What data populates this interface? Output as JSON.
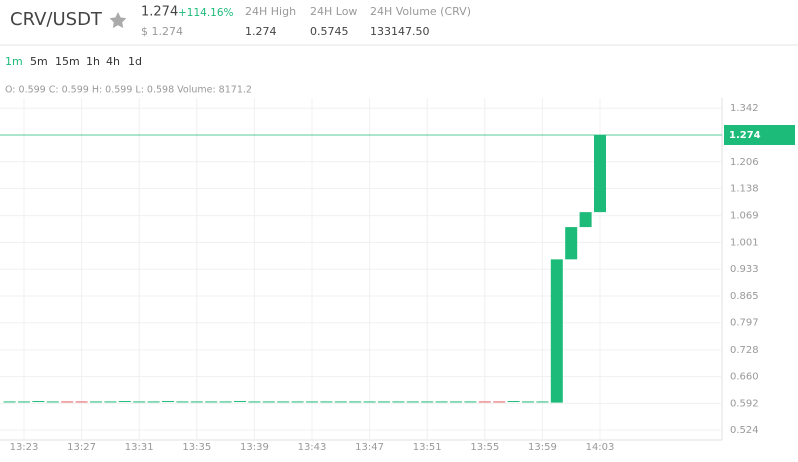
{
  "header": {
    "pair": "CRV/USDT",
    "price": "1.274",
    "change": "+114.16%",
    "price_usd": "$ 1.274",
    "stats": [
      {
        "label": "24H High",
        "value": "1.274"
      },
      {
        "label": "24H Low",
        "value": "0.5745"
      },
      {
        "label": "24H Volume (CRV)",
        "value": "133147.50"
      }
    ]
  },
  "intervals": [
    "1m",
    "5m",
    "15m",
    "1h",
    "4h",
    "1d"
  ],
  "active_interval": "1m",
  "ohlc": "O: 0.599  C: 0.599  H: 0.599  L: 0.598  Volume: 8171.2",
  "chart_data": {
    "type": "candlestick",
    "categories": [
      null,
      "13:23",
      null,
      null,
      null,
      "13:27",
      null,
      null,
      null,
      "13:31",
      null,
      null,
      null,
      "13:35",
      null,
      null,
      null,
      "13:39",
      null,
      null,
      null,
      "13:43",
      null,
      null,
      null,
      "13:47",
      null,
      null,
      null,
      "13:51",
      null,
      null,
      null,
      "13:55",
      null,
      null,
      null,
      "13:59",
      null,
      null,
      null,
      "14:03"
    ],
    "open": [
      0.597,
      0.597,
      0.597,
      0.597,
      0.597,
      0.597,
      0.597,
      0.597,
      0.597,
      0.597,
      0.597,
      0.597,
      0.597,
      0.597,
      0.597,
      0.597,
      0.597,
      0.597,
      0.597,
      0.597,
      0.597,
      0.597,
      0.597,
      0.597,
      0.597,
      0.597,
      0.597,
      0.597,
      0.597,
      0.597,
      0.597,
      0.597,
      0.597,
      0.597,
      0.597,
      0.597,
      0.597,
      0.597,
      0.594,
      0.958,
      1.04,
      1.078
    ],
    "close": [
      0.597,
      0.597,
      0.598,
      0.597,
      0.596,
      0.596,
      0.597,
      0.597,
      0.598,
      0.597,
      0.597,
      0.598,
      0.597,
      0.597,
      0.597,
      0.597,
      0.598,
      0.597,
      0.597,
      0.597,
      0.597,
      0.597,
      0.597,
      0.597,
      0.597,
      0.597,
      0.597,
      0.597,
      0.597,
      0.597,
      0.597,
      0.597,
      0.597,
      0.596,
      0.596,
      0.598,
      0.597,
      0.597,
      0.958,
      1.04,
      1.078,
      1.274
    ],
    "up_color": "#1dbb7a",
    "down_color": "#e85a60",
    "ylim": [
      0.499,
      1.368
    ],
    "yticks": [
      0.524,
      0.592,
      {
        "value": 0.66,
        "label": "0.660"
      },
      0.728,
      0.797,
      0.865,
      0.933,
      1.001,
      1.069,
      1.138,
      1.206,
      1.342
    ],
    "price_line": 1.274,
    "grid": true
  }
}
